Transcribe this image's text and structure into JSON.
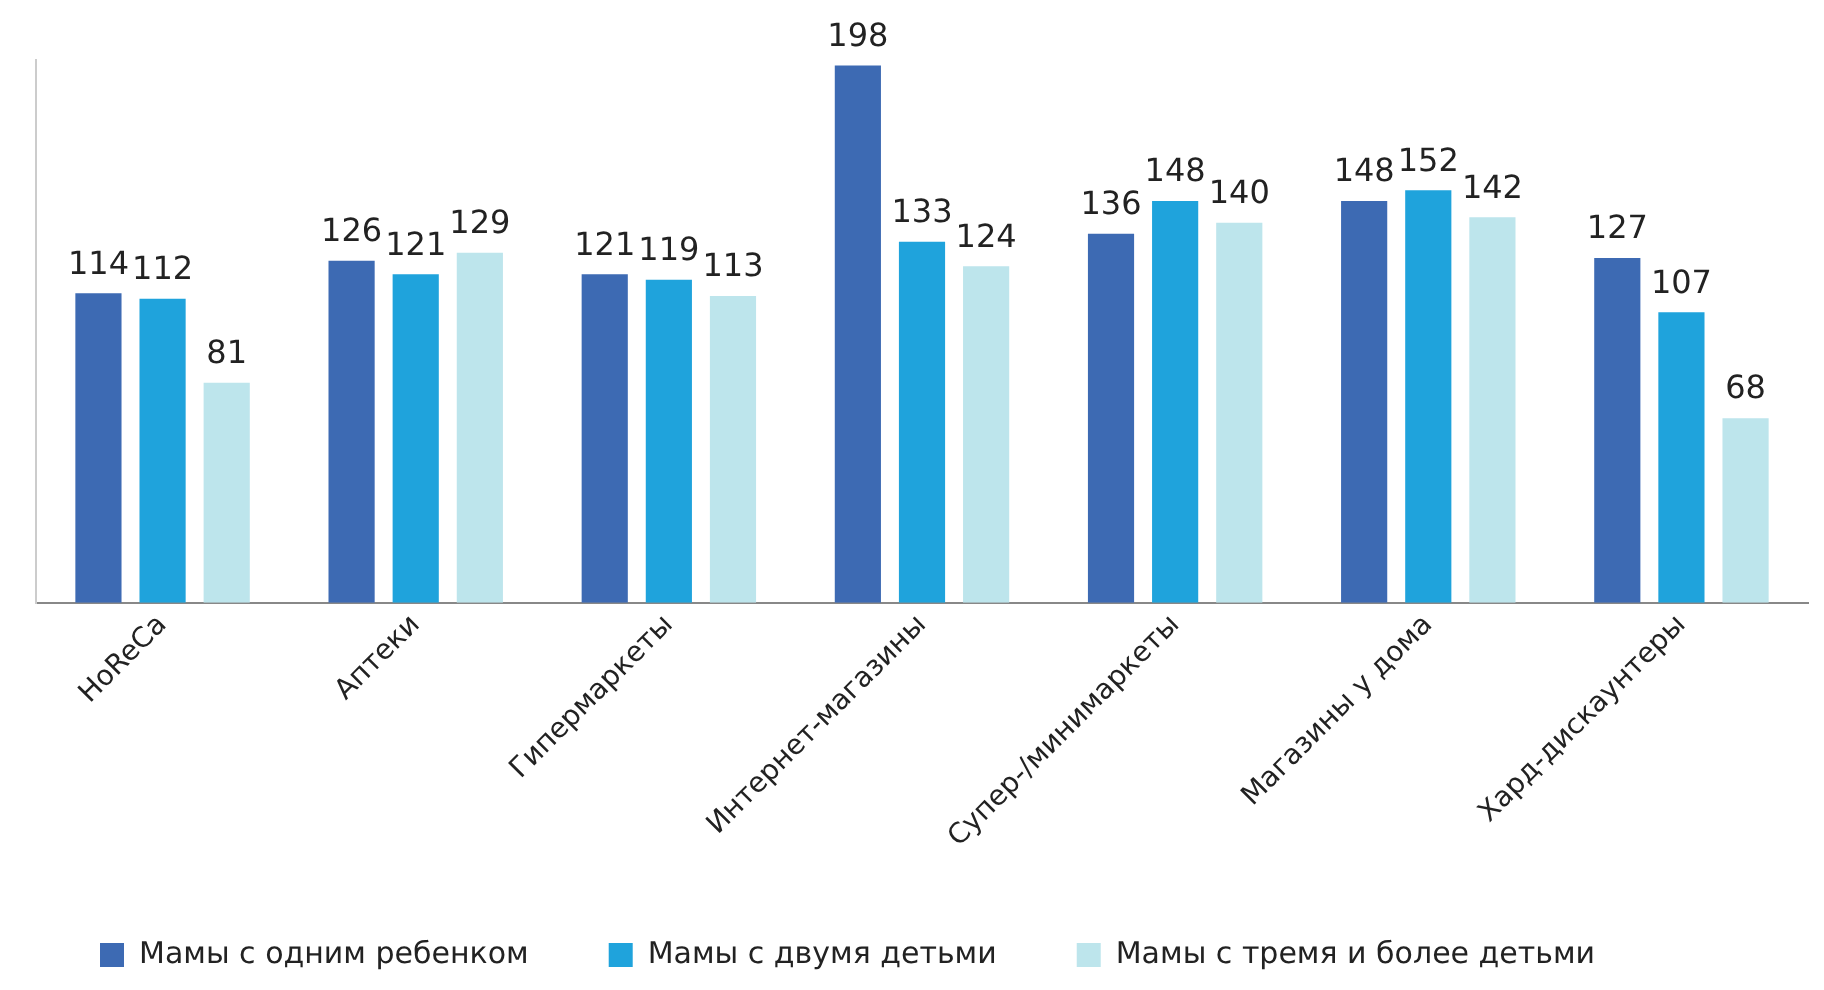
{
  "chart_data": {
    "type": "bar",
    "categories": [
      "HoReCa",
      "Аптеки",
      "Гипермаркеты",
      "Интернет-магазины",
      "Супер-/минимаркеты",
      "Магазины у дома",
      "Хард-дискаунтеры"
    ],
    "series": [
      {
        "name": "Мамы с одним ребенком",
        "color": "#3d6ab3",
        "values": [
          114,
          126,
          121,
          198,
          136,
          148,
          127
        ]
      },
      {
        "name": "Мамы с двумя детьми",
        "color": "#1fa3dc",
        "values": [
          112,
          121,
          119,
          133,
          148,
          152,
          107
        ]
      },
      {
        "name": "Мамы с тремя и более детьми",
        "color": "#bde5ec",
        "values": [
          81,
          129,
          113,
          124,
          140,
          142,
          68
        ]
      }
    ],
    "data_labels": true,
    "grid": false,
    "legend": "bottom"
  }
}
